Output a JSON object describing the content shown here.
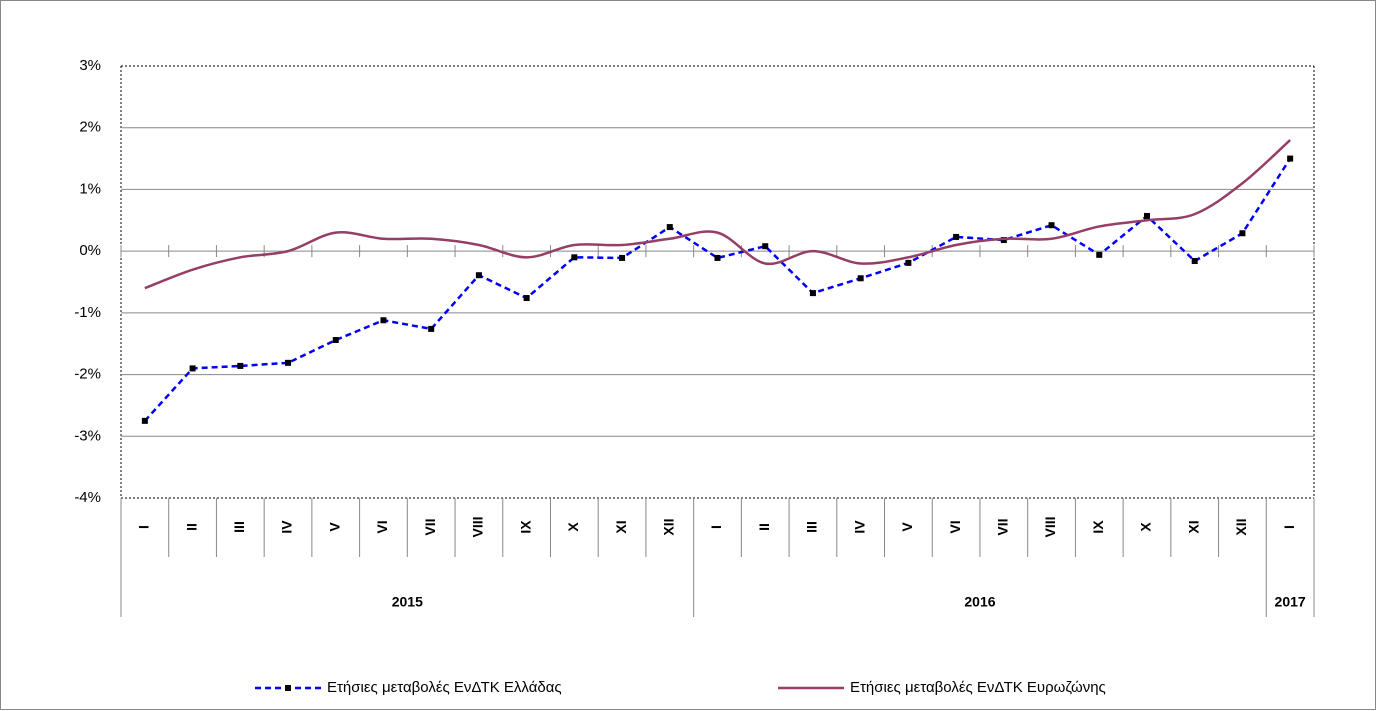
{
  "chart_data": {
    "type": "line",
    "category_groups": [
      {
        "name": "2015",
        "categories": [
          "I",
          "II",
          "III",
          "IV",
          "V",
          "VI",
          "VII",
          "VIII",
          "IX",
          "X",
          "XI",
          "XII"
        ]
      },
      {
        "name": "2016",
        "categories": [
          "I",
          "II",
          "III",
          "IV",
          "V",
          "VI",
          "VII",
          "VIII",
          "IX",
          "X",
          "XI",
          "XII"
        ]
      },
      {
        "name": "2017",
        "categories": [
          "I"
        ]
      }
    ],
    "series": [
      {
        "name": "Ετήσιες μεταβολές ΕνΔΤΚ Ελλάδας",
        "color": "#0000ff",
        "line_style": "dashed",
        "marker": "square",
        "marker_color": "#000000",
        "smooth": false,
        "values": [
          -2.75,
          -1.9,
          -1.86,
          -1.81,
          -1.44,
          -1.12,
          -1.26,
          -0.39,
          -0.76,
          -0.1,
          -0.11,
          0.39,
          -0.11,
          0.08,
          -0.68,
          -0.44,
          -0.19,
          0.23,
          0.18,
          0.42,
          -0.06,
          0.57,
          -0.16,
          0.29,
          1.5
        ]
      },
      {
        "name": "Ετήσιες μεταβολές ΕνΔΤΚ Ευρωζώνης",
        "color": "#953e66",
        "line_style": "solid",
        "marker": "none",
        "smooth": true,
        "values": [
          -0.6,
          -0.3,
          -0.1,
          0.0,
          0.3,
          0.2,
          0.2,
          0.1,
          -0.1,
          0.1,
          0.1,
          0.2,
          0.3,
          -0.2,
          0.0,
          -0.2,
          -0.1,
          0.1,
          0.2,
          0.2,
          0.4,
          0.5,
          0.6,
          1.1,
          1.8
        ]
      }
    ],
    "ylim": [
      -4,
      3
    ],
    "yticks": [
      {
        "value": -4,
        "label": "-4%"
      },
      {
        "value": -3,
        "label": "-3%"
      },
      {
        "value": -2,
        "label": "-2%"
      },
      {
        "value": -1,
        "label": "-1%"
      },
      {
        "value": 0,
        "label": "0%"
      },
      {
        "value": 1,
        "label": "1%"
      },
      {
        "value": 2,
        "label": "2%"
      },
      {
        "value": 3,
        "label": "3%"
      }
    ],
    "grid": true,
    "legend": "bottom"
  }
}
